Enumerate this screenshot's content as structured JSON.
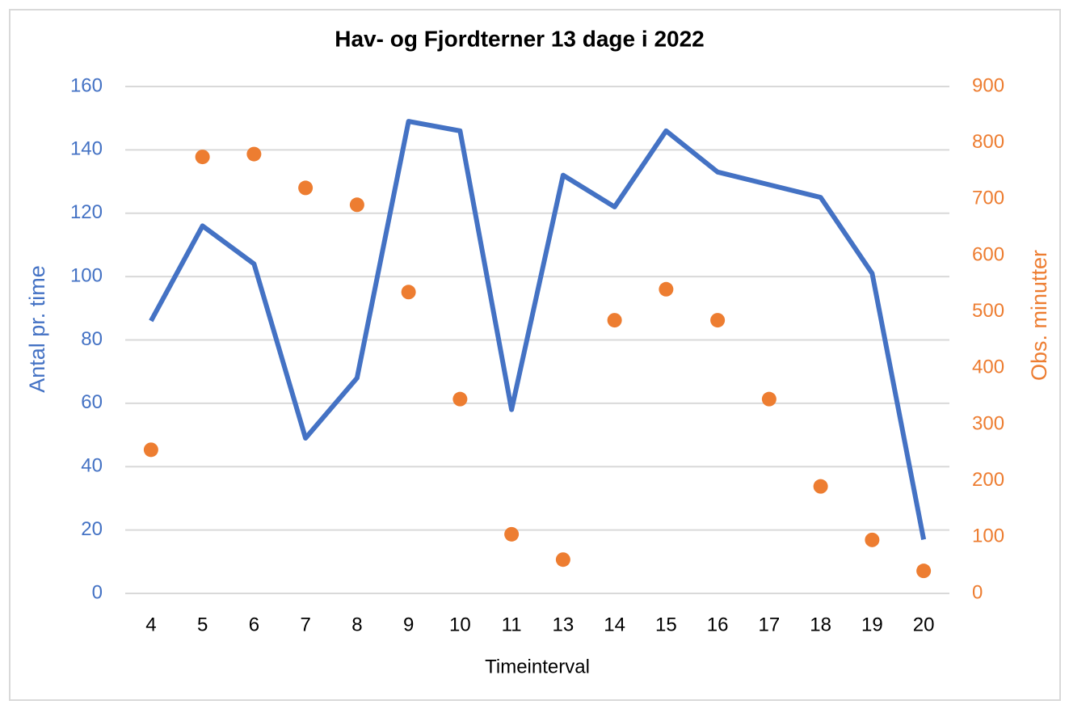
{
  "chart_data": {
    "type": "line",
    "title": "Hav- og Fjordterner 13 dage i 2022",
    "x_label": "Timeinterval",
    "y_label": "Antal pr. time",
    "y2_label": "Obs. minutter",
    "categories": [
      "4",
      "5",
      "6",
      "7",
      "8",
      "9",
      "10",
      "11",
      "13",
      "14",
      "15",
      "16",
      "17",
      "18",
      "19",
      "20"
    ],
    "series": [
      {
        "color": "#4472c4",
        "style": "line",
        "values": [
          86,
          116,
          104,
          49,
          68,
          149,
          146,
          58,
          132,
          122,
          146,
          133,
          129,
          125,
          101,
          17
        ]
      },
      {
        "color": "#ed7d31",
        "style": "markers",
        "axis": "y2",
        "values": [
          255,
          775,
          780,
          720,
          690,
          535,
          345,
          105,
          60,
          485,
          540,
          485,
          345,
          190,
          95,
          40
        ]
      }
    ],
    "ylim": [
      0,
      160
    ],
    "yticks": [
      0,
      20,
      40,
      60,
      80,
      100,
      120,
      140,
      160
    ],
    "y2lim": [
      0,
      900
    ],
    "y2ticks": [
      0,
      100,
      200,
      300,
      400,
      500,
      600,
      700,
      800,
      900
    ],
    "grid": true,
    "y_color": "#4472c4",
    "y2_color": "#ed7d31"
  }
}
